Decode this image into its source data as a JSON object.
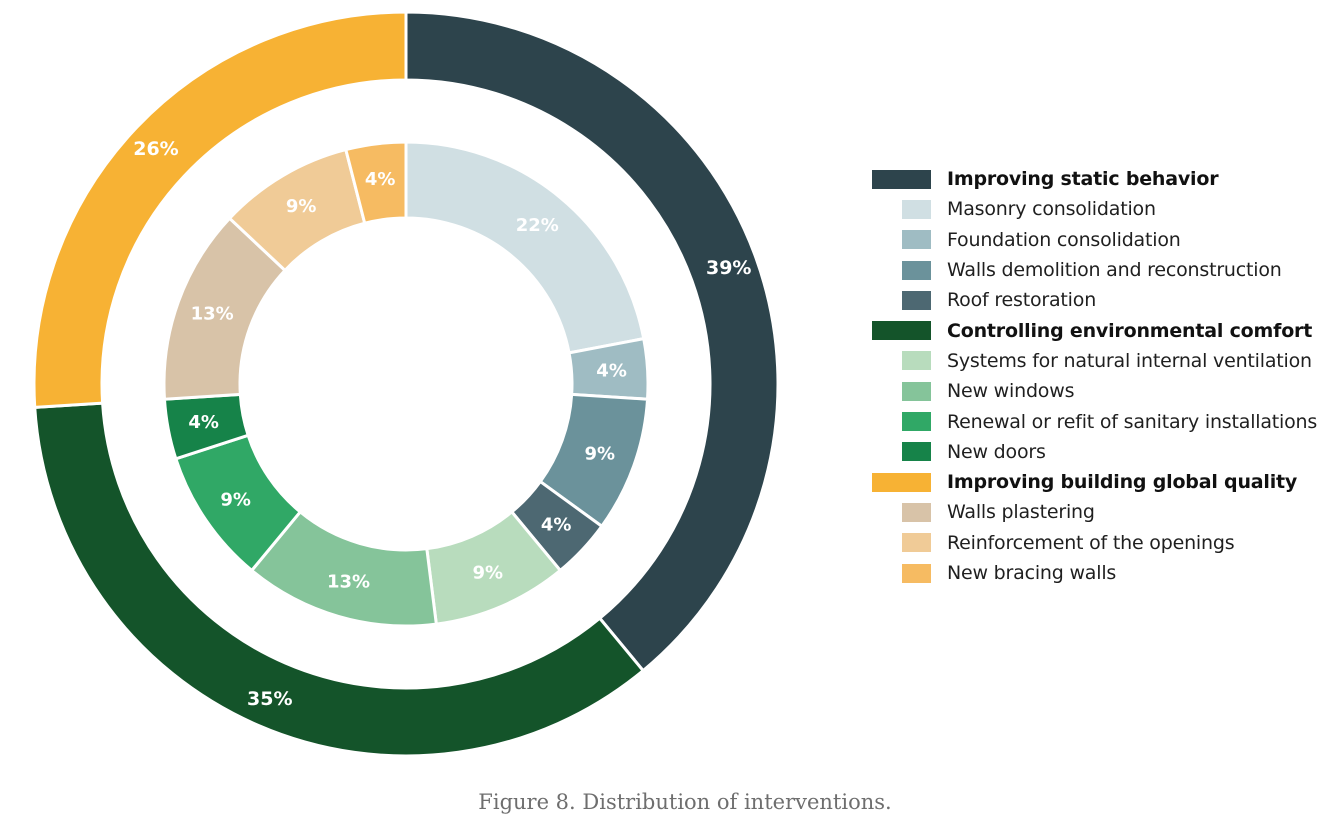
{
  "caption": "Figure 8. Distribution of interventions.",
  "chart_data": {
    "type": "pie",
    "subtype": "nested-donut",
    "legend_position": "right",
    "outer_ring": {
      "series": [
        {
          "name": "Improving static behavior",
          "value": 39,
          "label": "39%",
          "color": "#2d444c"
        },
        {
          "name": "Controlling environmental comfort",
          "value": 35,
          "label": "35%",
          "color": "#14542a"
        },
        {
          "name": "Improving building global quality",
          "value": 26,
          "label": "26%",
          "color": "#f7b234"
        }
      ]
    },
    "inner_ring": {
      "series": [
        {
          "name": "Masonry consolidation",
          "group": "Improving static behavior",
          "value": 22,
          "label": "22%",
          "color": "#d0dfe3"
        },
        {
          "name": "Foundation consolidation",
          "group": "Improving static behavior",
          "value": 4,
          "label": "4%",
          "color": "#9fbcc3"
        },
        {
          "name": "Walls demolition and reconstruction",
          "group": "Improving static behavior",
          "value": 9,
          "label": "9%",
          "color": "#6b929b"
        },
        {
          "name": "Roof restoration",
          "group": "Improving static behavior",
          "value": 4,
          "label": "4%",
          "color": "#4d6872"
        },
        {
          "name": "Systems for natural internal ventilation",
          "group": "Controlling environmental comfort",
          "value": 9,
          "label": "9%",
          "color": "#b8dcbd"
        },
        {
          "name": "New windows",
          "group": "Controlling environmental comfort",
          "value": 13,
          "label": "13%",
          "color": "#85c49a"
        },
        {
          "name": "Renewal or refit of sanitary installations",
          "group": "Controlling environmental comfort",
          "value": 9,
          "label": "9%",
          "color": "#30a866"
        },
        {
          "name": "New doors",
          "group": "Controlling environmental comfort",
          "value": 4,
          "label": "4%",
          "color": "#168349"
        },
        {
          "name": "Walls plastering",
          "group": "Improving building global quality",
          "value": 13,
          "label": "13%",
          "color": "#d8c3a8"
        },
        {
          "name": "Reinforcement of the openings",
          "group": "Improving building global quality",
          "value": 9,
          "label": "9%",
          "color": "#f0cb97"
        },
        {
          "name": "New bracing walls",
          "group": "Improving building global quality",
          "value": 4,
          "label": "4%",
          "color": "#f6bb62"
        }
      ]
    },
    "legend": [
      {
        "label": "Improving static behavior",
        "level": "group",
        "color": "#2d444c"
      },
      {
        "label": "Masonry consolidation",
        "level": "item",
        "color": "#d0dfe3"
      },
      {
        "label": "Foundation consolidation",
        "level": "item",
        "color": "#9fbcc3"
      },
      {
        "label": "Walls demolition and reconstruction",
        "level": "item",
        "color": "#6b929b"
      },
      {
        "label": "Roof restoration",
        "level": "item",
        "color": "#4d6872"
      },
      {
        "label": "Controlling environmental comfort",
        "level": "group",
        "color": "#14542a"
      },
      {
        "label": "Systems for natural internal ventilation",
        "level": "item",
        "color": "#b8dcbd"
      },
      {
        "label": "New windows",
        "level": "item",
        "color": "#85c49a"
      },
      {
        "label": "Renewal or refit of sanitary installations",
        "level": "item",
        "color": "#30a866"
      },
      {
        "label": "New doors",
        "level": "item",
        "color": "#168349"
      },
      {
        "label": "Improving building global quality",
        "level": "group",
        "color": "#f7b234"
      },
      {
        "label": "Walls plastering",
        "level": "item",
        "color": "#d8c3a8"
      },
      {
        "label": "Reinforcement of the openings",
        "level": "item",
        "color": "#f0cb97"
      },
      {
        "label": "New bracing walls",
        "level": "item",
        "color": "#f6bb62"
      }
    ]
  }
}
